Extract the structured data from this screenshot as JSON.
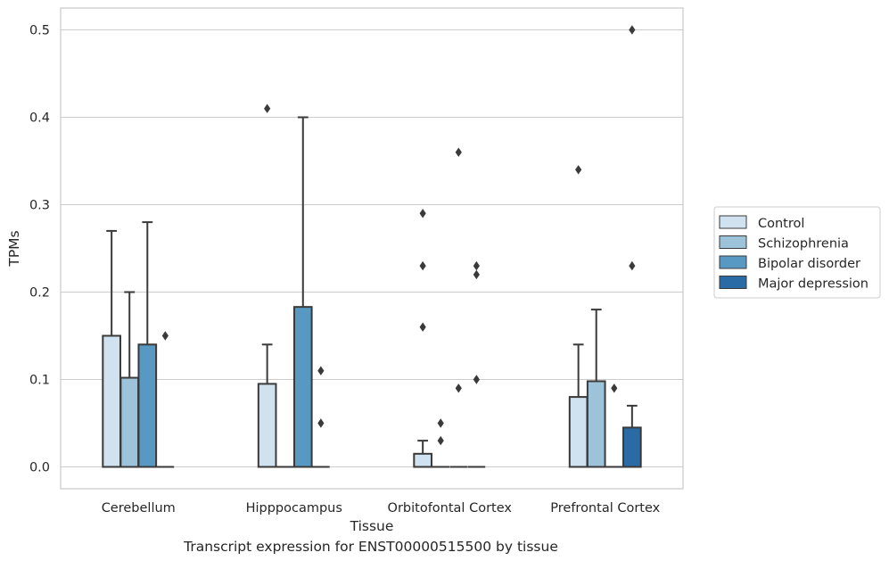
{
  "caption": "Transcript expression for ENST00000515500 by tissue",
  "chart_data": {
    "type": "box",
    "xlabel": "Tissue",
    "ylabel": "TPMs",
    "ylim": [
      -0.025,
      0.525
    ],
    "yticks": [
      0.0,
      0.1,
      0.2,
      0.3,
      0.4,
      0.5
    ],
    "ytick_labels": [
      "0.0",
      "0.1",
      "0.2",
      "0.3",
      "0.4",
      "0.5"
    ],
    "grid": "horizontal",
    "legend_position": "right",
    "categories": [
      "Cerebellum",
      "Hipppocampus",
      "Orbitofontal Cortex",
      "Prefrontal Cortex"
    ],
    "series": [
      {
        "name": "Control",
        "color": "#d0e1f0",
        "boxes": [
          {
            "q1": 0.0,
            "median": 0.0,
            "q3": 0.15,
            "whisker_low": 0.0,
            "whisker_high": 0.27,
            "outliers": []
          },
          {
            "q1": 0.0,
            "median": 0.0,
            "q3": 0.095,
            "whisker_low": 0.0,
            "whisker_high": 0.14,
            "outliers": [
              0.41
            ]
          },
          {
            "q1": 0.0,
            "median": 0.0,
            "q3": 0.015,
            "whisker_low": 0.0,
            "whisker_high": 0.03,
            "outliers": [
              0.29,
              0.23,
              0.16
            ]
          },
          {
            "q1": 0.0,
            "median": 0.0,
            "q3": 0.08,
            "whisker_low": 0.0,
            "whisker_high": 0.14,
            "outliers": [
              0.34
            ]
          }
        ]
      },
      {
        "name": "Schizophrenia",
        "color": "#9cc3da",
        "boxes": [
          {
            "q1": 0.0,
            "median": 0.0,
            "q3": 0.102,
            "whisker_low": 0.0,
            "whisker_high": 0.2,
            "outliers": []
          },
          {
            "q1": 0.0,
            "median": 0.0,
            "q3": 0.0,
            "whisker_low": 0.0,
            "whisker_high": 0.0,
            "outliers": []
          },
          {
            "q1": 0.0,
            "median": 0.0,
            "q3": 0.0,
            "whisker_low": 0.0,
            "whisker_high": 0.0,
            "outliers": [
              0.05,
              0.03
            ]
          },
          {
            "q1": 0.0,
            "median": 0.0,
            "q3": 0.098,
            "whisker_low": 0.0,
            "whisker_high": 0.18,
            "outliers": []
          }
        ]
      },
      {
        "name": "Bipolar disorder",
        "color": "#5899c4",
        "boxes": [
          {
            "q1": 0.0,
            "median": 0.0,
            "q3": 0.14,
            "whisker_low": 0.0,
            "whisker_high": 0.28,
            "outliers": []
          },
          {
            "q1": 0.0,
            "median": 0.0,
            "q3": 0.183,
            "whisker_low": 0.0,
            "whisker_high": 0.4,
            "outliers": []
          },
          {
            "q1": 0.0,
            "median": 0.0,
            "q3": 0.0,
            "whisker_low": 0.0,
            "whisker_high": 0.0,
            "outliers": [
              0.36,
              0.09
            ]
          },
          {
            "q1": 0.0,
            "median": 0.0,
            "q3": 0.0,
            "whisker_low": 0.0,
            "whisker_high": 0.0,
            "outliers": [
              0.09
            ]
          }
        ]
      },
      {
        "name": "Major depression",
        "color": "#2a6aa5",
        "boxes": [
          {
            "q1": 0.0,
            "median": 0.0,
            "q3": 0.0,
            "whisker_low": 0.0,
            "whisker_high": 0.0,
            "outliers": [
              0.15
            ]
          },
          {
            "q1": 0.0,
            "median": 0.0,
            "q3": 0.0,
            "whisker_low": 0.0,
            "whisker_high": 0.0,
            "outliers": [
              0.11,
              0.05
            ]
          },
          {
            "q1": 0.0,
            "median": 0.0,
            "q3": 0.0,
            "whisker_low": 0.0,
            "whisker_high": 0.0,
            "outliers": [
              0.23,
              0.22,
              0.1
            ]
          },
          {
            "q1": 0.0,
            "median": 0.0,
            "q3": 0.045,
            "whisker_low": 0.0,
            "whisker_high": 0.07,
            "outliers": [
              0.5,
              0.23
            ]
          }
        ]
      }
    ]
  }
}
